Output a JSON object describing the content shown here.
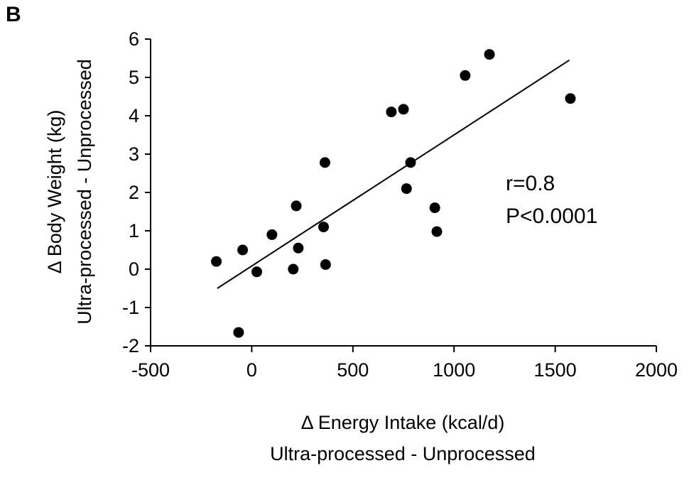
{
  "panel_label": "B",
  "chart_data": {
    "type": "scatter",
    "xlabel": "Δ Energy Intake (kcal/d)",
    "xlabel_line2": "Ultra-processed - Unprocessed",
    "ylabel": "Δ Body Weight (kg)",
    "ylabel_line2": "Ultra-processed - Unprocessed",
    "xlim": [
      -500,
      2000
    ],
    "ylim": [
      -2,
      6
    ],
    "xticks": [
      -500,
      0,
      500,
      1000,
      1500,
      2000
    ],
    "yticks": [
      -2,
      -1,
      0,
      1,
      2,
      3,
      4,
      5,
      6
    ],
    "grid": false,
    "points": [
      {
        "x": -175,
        "y": 0.2
      },
      {
        "x": -65,
        "y": -1.65
      },
      {
        "x": -45,
        "y": 0.5
      },
      {
        "x": 25,
        "y": -0.07
      },
      {
        "x": 100,
        "y": 0.9
      },
      {
        "x": 205,
        "y": 0.0
      },
      {
        "x": 220,
        "y": 1.65
      },
      {
        "x": 230,
        "y": 0.55
      },
      {
        "x": 355,
        "y": 1.1
      },
      {
        "x": 362,
        "y": 2.78
      },
      {
        "x": 365,
        "y": 0.12
      },
      {
        "x": 690,
        "y": 4.1
      },
      {
        "x": 750,
        "y": 4.17
      },
      {
        "x": 765,
        "y": 2.1
      },
      {
        "x": 785,
        "y": 2.78
      },
      {
        "x": 905,
        "y": 1.6
      },
      {
        "x": 915,
        "y": 0.98
      },
      {
        "x": 1055,
        "y": 5.05
      },
      {
        "x": 1175,
        "y": 5.6
      },
      {
        "x": 1575,
        "y": 4.45
      }
    ],
    "trendline": {
      "x1": -170,
      "y1": -0.5,
      "x2": 1570,
      "y2": 5.45
    },
    "annotations": [
      "r=0.8",
      "P<0.0001"
    ],
    "point_color": "#000000",
    "line_color": "#000000"
  }
}
